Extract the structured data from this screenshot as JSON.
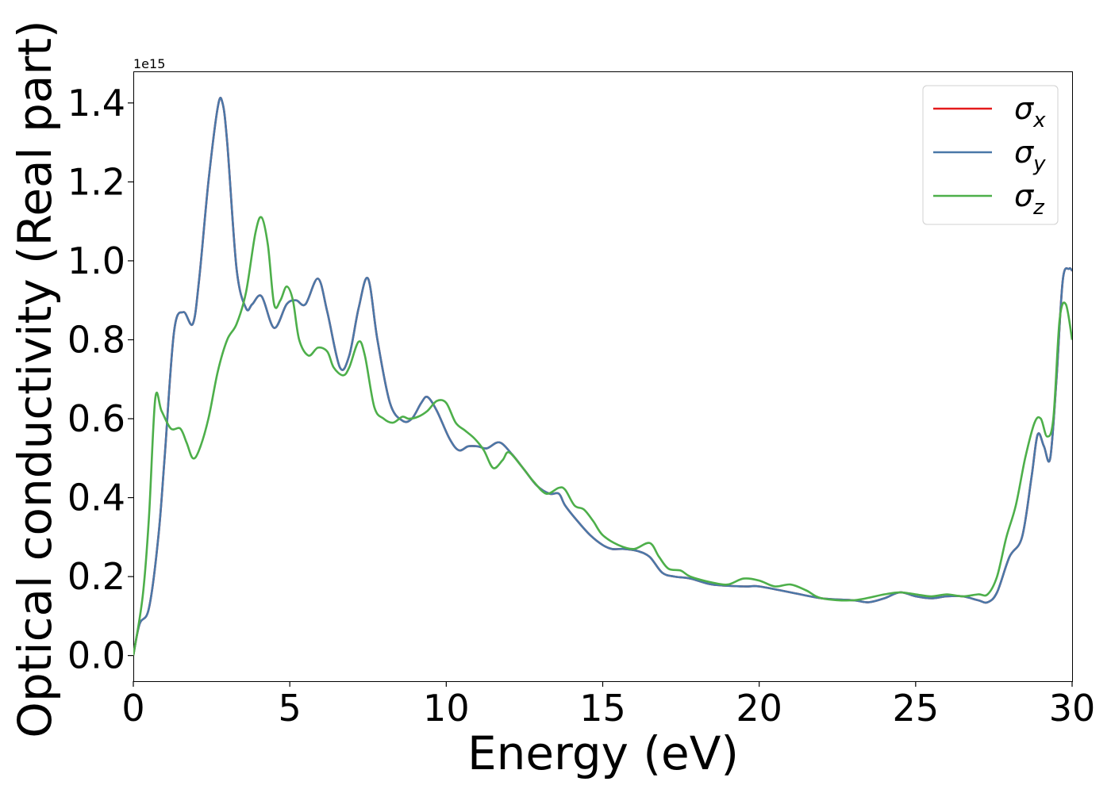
{
  "chart_data": {
    "type": "line",
    "title": "",
    "xlabel": "Energy (eV)",
    "ylabel": "Optical conductivity (Real part)",
    "y_offset_label": "1e15",
    "xlim": [
      0,
      30
    ],
    "ylim": [
      -0.065,
      1.48
    ],
    "x_ticks": [
      0,
      5,
      10,
      15,
      20,
      25,
      30
    ],
    "y_ticks": [
      0.0,
      0.2,
      0.4,
      0.6,
      0.8,
      1.0,
      1.2,
      1.4
    ],
    "x_tick_labels": [
      "0",
      "5",
      "10",
      "15",
      "20",
      "25",
      "30"
    ],
    "y_tick_labels": [
      "0.0",
      "0.2",
      "0.4",
      "0.6",
      "0.8",
      "1.0",
      "1.2",
      "1.4"
    ],
    "grid": false,
    "legend_position": "top-right",
    "series": [
      {
        "name": "σx",
        "legend_base": "σ",
        "legend_sub": "x",
        "color": "#e41a1c",
        "x": [
          0,
          0.2,
          0.5,
          0.8,
          1.0,
          1.3,
          1.6,
          1.9,
          2.1,
          2.4,
          2.7,
          2.85,
          3.0,
          3.3,
          3.6,
          3.8,
          4.1,
          4.5,
          4.9,
          5.2,
          5.5,
          5.9,
          6.2,
          6.6,
          6.9,
          7.2,
          7.5,
          7.8,
          8.2,
          8.6,
          8.9,
          9.2,
          9.4,
          9.7,
          10.1,
          10.4,
          10.7,
          11.0,
          11.3,
          11.7,
          12.1,
          12.5,
          12.9,
          13.3,
          13.6,
          13.8,
          14.2,
          14.6,
          15.0,
          15.3,
          15.7,
          16.1,
          16.5,
          16.9,
          17.3,
          17.8,
          18.5,
          19.5,
          20.0,
          21.0,
          22.0,
          23.0,
          23.5,
          24.0,
          24.5,
          25.0,
          25.5,
          26.0,
          26.5,
          27.0,
          27.3,
          27.6,
          28.0,
          28.4,
          28.7,
          28.9,
          29.1,
          29.3,
          29.5,
          29.7,
          29.9,
          30.0
        ],
        "values": [
          0,
          0.08,
          0.12,
          0.3,
          0.5,
          0.82,
          0.87,
          0.84,
          0.95,
          1.2,
          1.39,
          1.4,
          1.3,
          0.98,
          0.88,
          0.89,
          0.91,
          0.83,
          0.89,
          0.9,
          0.89,
          0.955,
          0.87,
          0.73,
          0.76,
          0.88,
          0.955,
          0.8,
          0.64,
          0.595,
          0.6,
          0.64,
          0.655,
          0.62,
          0.55,
          0.52,
          0.53,
          0.53,
          0.525,
          0.54,
          0.51,
          0.47,
          0.43,
          0.41,
          0.41,
          0.38,
          0.34,
          0.305,
          0.28,
          0.27,
          0.27,
          0.265,
          0.25,
          0.21,
          0.2,
          0.195,
          0.18,
          0.175,
          0.175,
          0.16,
          0.145,
          0.14,
          0.135,
          0.145,
          0.16,
          0.15,
          0.145,
          0.15,
          0.15,
          0.14,
          0.135,
          0.16,
          0.25,
          0.3,
          0.45,
          0.56,
          0.53,
          0.5,
          0.7,
          0.95,
          0.98,
          0.975
        ]
      },
      {
        "name": "σy",
        "legend_base": "σ",
        "legend_sub": "y",
        "color": "#4a78a8",
        "x": [
          0,
          0.2,
          0.5,
          0.8,
          1.0,
          1.3,
          1.6,
          1.9,
          2.1,
          2.4,
          2.7,
          2.85,
          3.0,
          3.3,
          3.6,
          3.8,
          4.1,
          4.5,
          4.9,
          5.2,
          5.5,
          5.9,
          6.2,
          6.6,
          6.9,
          7.2,
          7.5,
          7.8,
          8.2,
          8.6,
          8.9,
          9.2,
          9.4,
          9.7,
          10.1,
          10.4,
          10.7,
          11.0,
          11.3,
          11.7,
          12.1,
          12.5,
          12.9,
          13.3,
          13.6,
          13.8,
          14.2,
          14.6,
          15.0,
          15.3,
          15.7,
          16.1,
          16.5,
          16.9,
          17.3,
          17.8,
          18.5,
          19.5,
          20.0,
          21.0,
          22.0,
          23.0,
          23.5,
          24.0,
          24.5,
          25.0,
          25.5,
          26.0,
          26.5,
          27.0,
          27.3,
          27.6,
          28.0,
          28.4,
          28.7,
          28.9,
          29.1,
          29.3,
          29.5,
          29.7,
          29.9,
          30.0
        ],
        "values": [
          0,
          0.08,
          0.12,
          0.3,
          0.5,
          0.82,
          0.87,
          0.84,
          0.95,
          1.2,
          1.39,
          1.4,
          1.3,
          0.98,
          0.88,
          0.89,
          0.91,
          0.83,
          0.89,
          0.9,
          0.89,
          0.955,
          0.87,
          0.73,
          0.76,
          0.88,
          0.955,
          0.8,
          0.64,
          0.595,
          0.6,
          0.64,
          0.655,
          0.62,
          0.55,
          0.52,
          0.53,
          0.53,
          0.525,
          0.54,
          0.51,
          0.47,
          0.43,
          0.41,
          0.41,
          0.38,
          0.34,
          0.305,
          0.28,
          0.27,
          0.27,
          0.265,
          0.25,
          0.21,
          0.2,
          0.195,
          0.18,
          0.175,
          0.175,
          0.16,
          0.145,
          0.14,
          0.135,
          0.145,
          0.16,
          0.15,
          0.145,
          0.15,
          0.15,
          0.14,
          0.135,
          0.16,
          0.25,
          0.3,
          0.45,
          0.56,
          0.53,
          0.5,
          0.7,
          0.95,
          0.98,
          0.975
        ]
      },
      {
        "name": "σz",
        "legend_base": "σ",
        "legend_sub": "z",
        "color": "#4daf4a",
        "x": [
          0,
          0.3,
          0.5,
          0.7,
          0.9,
          1.2,
          1.5,
          1.7,
          1.9,
          2.1,
          2.4,
          2.7,
          3.0,
          3.3,
          3.6,
          3.9,
          4.1,
          4.3,
          4.5,
          4.7,
          4.9,
          5.1,
          5.3,
          5.6,
          5.9,
          6.2,
          6.4,
          6.7,
          6.9,
          7.2,
          7.4,
          7.7,
          8.0,
          8.3,
          8.6,
          8.8,
          9.1,
          9.4,
          9.7,
          10.0,
          10.3,
          10.6,
          10.9,
          11.2,
          11.5,
          11.8,
          12.0,
          12.4,
          12.8,
          13.2,
          13.6,
          13.8,
          14.1,
          14.4,
          14.7,
          15.0,
          15.5,
          16.0,
          16.5,
          16.8,
          17.1,
          17.5,
          17.8,
          18.5,
          19.0,
          19.5,
          20.0,
          20.5,
          21.0,
          21.5,
          22.0,
          23.0,
          24.0,
          24.5,
          25.0,
          25.5,
          26.0,
          26.5,
          27.0,
          27.3,
          27.6,
          27.9,
          28.2,
          28.5,
          28.8,
          29.0,
          29.2,
          29.4,
          29.6,
          29.8,
          30.0
        ],
        "values": [
          0,
          0.15,
          0.35,
          0.65,
          0.62,
          0.575,
          0.575,
          0.54,
          0.5,
          0.52,
          0.6,
          0.72,
          0.8,
          0.84,
          0.92,
          1.07,
          1.11,
          1.04,
          0.89,
          0.9,
          0.935,
          0.9,
          0.8,
          0.76,
          0.78,
          0.77,
          0.73,
          0.71,
          0.73,
          0.795,
          0.76,
          0.63,
          0.6,
          0.59,
          0.605,
          0.6,
          0.605,
          0.62,
          0.645,
          0.64,
          0.59,
          0.57,
          0.55,
          0.52,
          0.475,
          0.495,
          0.515,
          0.48,
          0.44,
          0.41,
          0.425,
          0.42,
          0.38,
          0.37,
          0.34,
          0.305,
          0.28,
          0.27,
          0.285,
          0.25,
          0.22,
          0.215,
          0.2,
          0.185,
          0.18,
          0.195,
          0.19,
          0.175,
          0.18,
          0.165,
          0.145,
          0.14,
          0.155,
          0.16,
          0.155,
          0.15,
          0.155,
          0.15,
          0.155,
          0.155,
          0.2,
          0.3,
          0.38,
          0.5,
          0.59,
          0.6,
          0.555,
          0.6,
          0.85,
          0.89,
          0.8
        ]
      }
    ]
  }
}
